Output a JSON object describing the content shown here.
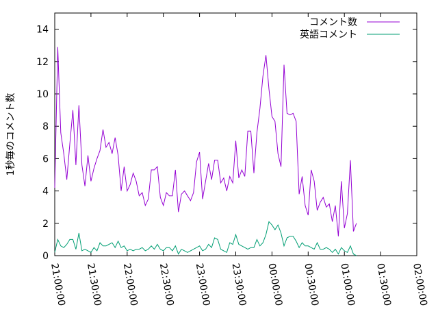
{
  "chart_data": {
    "type": "line",
    "title": "",
    "xlabel": "",
    "ylabel": "1秒毎のコメント数",
    "xlim": [
      "21:00:00",
      "02:00:00"
    ],
    "ylim": [
      0,
      15
    ],
    "x_tick_labels": [
      "21:00:00",
      "21:30:00",
      "22:00:00",
      "22:30:00",
      "23:00:00",
      "23:30:00",
      "00:00:00",
      "00:30:00",
      "01:00:00",
      "01:30:00",
      "02:00:00"
    ],
    "y_tick_labels": [
      "0",
      "2",
      "4",
      "6",
      "8",
      "10",
      "12",
      "14"
    ],
    "grid": false,
    "legend": {
      "position": "top-right"
    },
    "series": [
      {
        "name": "コメント数",
        "color": "#9400d3",
        "time_start": "21:00:00",
        "time_step_minutes": 2.5,
        "values": [
          4.2,
          12.9,
          7.6,
          6.3,
          4.7,
          6.9,
          9.0,
          5.6,
          9.3,
          5.6,
          4.3,
          6.2,
          4.6,
          5.4,
          6.0,
          6.5,
          7.8,
          6.7,
          7.0,
          6.3,
          7.3,
          6.2,
          4.0,
          5.5,
          4.0,
          4.4,
          5.1,
          4.6,
          3.7,
          3.9,
          3.1,
          3.5,
          5.3,
          5.3,
          5.5,
          3.6,
          3.1,
          3.9,
          3.7,
          3.7,
          5.3,
          2.7,
          3.8,
          4.0,
          3.7,
          3.4,
          3.9,
          5.8,
          6.4,
          3.5,
          4.6,
          5.7,
          4.7,
          5.9,
          5.9,
          4.5,
          4.8,
          4.0,
          4.9,
          4.5,
          7.1,
          4.8,
          5.3,
          4.9,
          7.7,
          7.7,
          5.1,
          7.6,
          9.1,
          11.1,
          12.4,
          10.3,
          8.6,
          8.3,
          6.3,
          5.5,
          11.8,
          8.8,
          8.7,
          8.8,
          8.3,
          3.8,
          4.9,
          3.1,
          2.5,
          5.3,
          4.6,
          2.8,
          3.3,
          3.6,
          3.0,
          3.2,
          2.1,
          3.1,
          1.2,
          4.6,
          1.7,
          2.6,
          5.9,
          1.5,
          2.0
        ]
      },
      {
        "name": "英語コメント",
        "color": "#009e73",
        "time_start": "21:00:00",
        "time_step_minutes": 2.5,
        "values": [
          0.2,
          1.0,
          0.6,
          0.5,
          0.7,
          1.0,
          1.0,
          0.4,
          1.4,
          0.3,
          0.4,
          0.3,
          0.2,
          0.5,
          0.3,
          0.8,
          0.6,
          0.6,
          0.7,
          0.8,
          0.5,
          0.9,
          0.5,
          0.6,
          0.3,
          0.4,
          0.3,
          0.4,
          0.4,
          0.5,
          0.3,
          0.4,
          0.6,
          0.4,
          0.7,
          0.4,
          0.3,
          0.5,
          0.5,
          0.3,
          0.6,
          0.1,
          0.4,
          0.3,
          0.2,
          0.3,
          0.4,
          0.5,
          0.6,
          0.3,
          0.4,
          0.7,
          0.5,
          1.1,
          1.0,
          0.4,
          0.3,
          0.2,
          0.8,
          0.7,
          1.3,
          0.7,
          0.6,
          0.5,
          0.4,
          0.5,
          0.5,
          1.0,
          0.6,
          0.8,
          1.3,
          2.1,
          1.9,
          1.6,
          1.9,
          1.4,
          0.6,
          1.1,
          1.2,
          1.2,
          0.9,
          0.5,
          0.8,
          0.6,
          0.6,
          0.5,
          0.4,
          0.8,
          0.4,
          0.4,
          0.5,
          0.4,
          0.2,
          0.4,
          0.1,
          0.5,
          0.3,
          0.2,
          0.6,
          0.1,
          0.0
        ]
      }
    ]
  }
}
